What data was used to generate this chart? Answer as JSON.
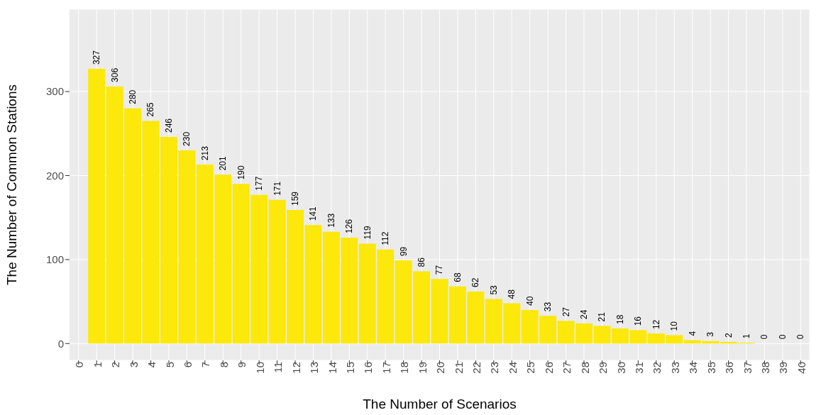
{
  "chart_data": {
    "type": "bar",
    "xlabel": "The Number of Scenarios",
    "ylabel": "The Number of Common Stations",
    "categories": [
      "0",
      "1",
      "2",
      "3",
      "4",
      "5",
      "6",
      "7",
      "8",
      "9",
      "10",
      "11",
      "12",
      "13",
      "14",
      "15",
      "16",
      "17",
      "18",
      "19",
      "20",
      "21",
      "22",
      "23",
      "24",
      "25",
      "26",
      "27",
      "28",
      "29",
      "30",
      "31",
      "32",
      "33",
      "34",
      "35",
      "36",
      "37",
      "38",
      "39",
      "40"
    ],
    "values": [
      null,
      327,
      306,
      280,
      265,
      246,
      230,
      213,
      201,
      190,
      177,
      171,
      159,
      141,
      133,
      126,
      119,
      112,
      99,
      86,
      77,
      68,
      62,
      53,
      48,
      40,
      33,
      27,
      24,
      21,
      18,
      16,
      12,
      10,
      4,
      3,
      2,
      1,
      0,
      0,
      0
    ],
    "color": "#fce80a",
    "ylim": [
      -20,
      398
    ],
    "yticks": [
      0,
      100,
      200,
      300
    ],
    "grid": true,
    "data_labels": true
  }
}
